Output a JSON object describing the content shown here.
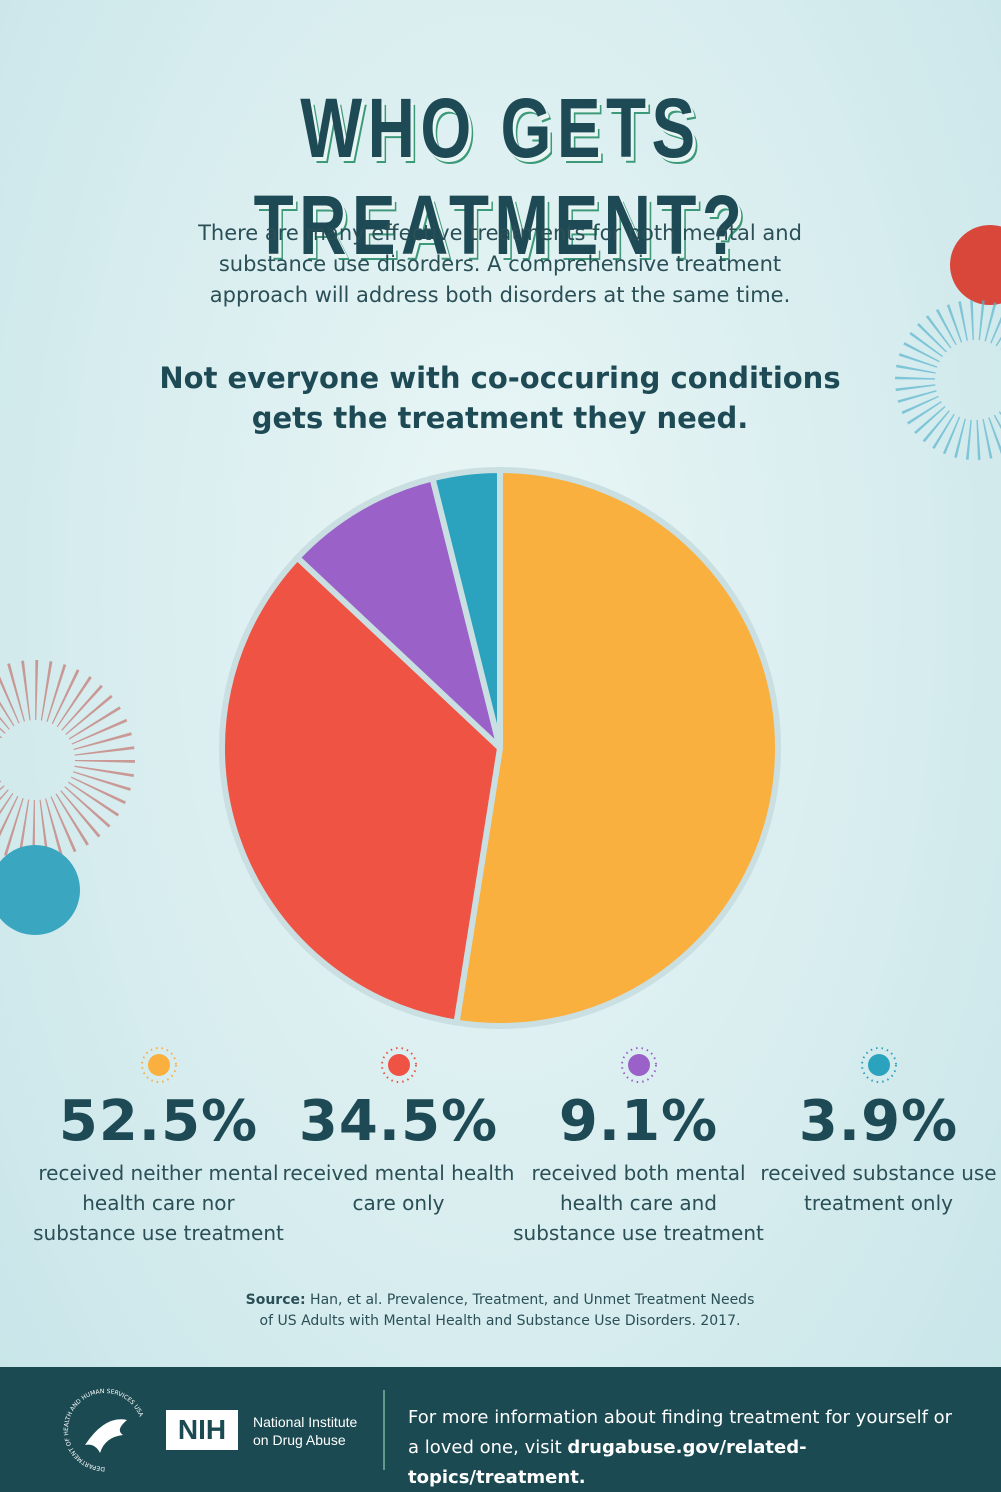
{
  "chart_data": {
    "type": "pie",
    "title": "WHO GETS TREATMENT?",
    "subtitle": "There are many effective treatments for both mental and substance use disorders. A comprehensive treatment approach will address both disorders at the same time.",
    "heading": "Not everyone with co-occuring conditions gets the treatment they need.",
    "categories": [
      "received neither mental health care nor substance use treatment",
      "received mental health care only",
      "received both mental health care and substance use treatment",
      "received substance use treatment only"
    ],
    "values": [
      52.5,
      34.5,
      9.1,
      3.9
    ],
    "value_labels": [
      "52.5%",
      "34.5%",
      "9.1%",
      "3.9%"
    ],
    "colors": [
      "#f9b03f",
      "#ef5344",
      "#9a62c8",
      "#2ba3bf"
    ],
    "source": {
      "label": "Source:",
      "text": "Han, et al. Prevalence, Treatment, and Unmet Treatment Needs of US Adults with Mental Health and Substance Use Disorders. 2017."
    }
  },
  "footer": {
    "seal_text": "DEPARTMENT OF HEALTH AND HUMAN SERVICES USA",
    "org_short": "NIH",
    "org_name": "National Institute on Drug Abuse",
    "text": "For more information about finding treatment for yourself or a loved one, visit",
    "link": "drugabuse.gov/related-topics/treatment."
  }
}
